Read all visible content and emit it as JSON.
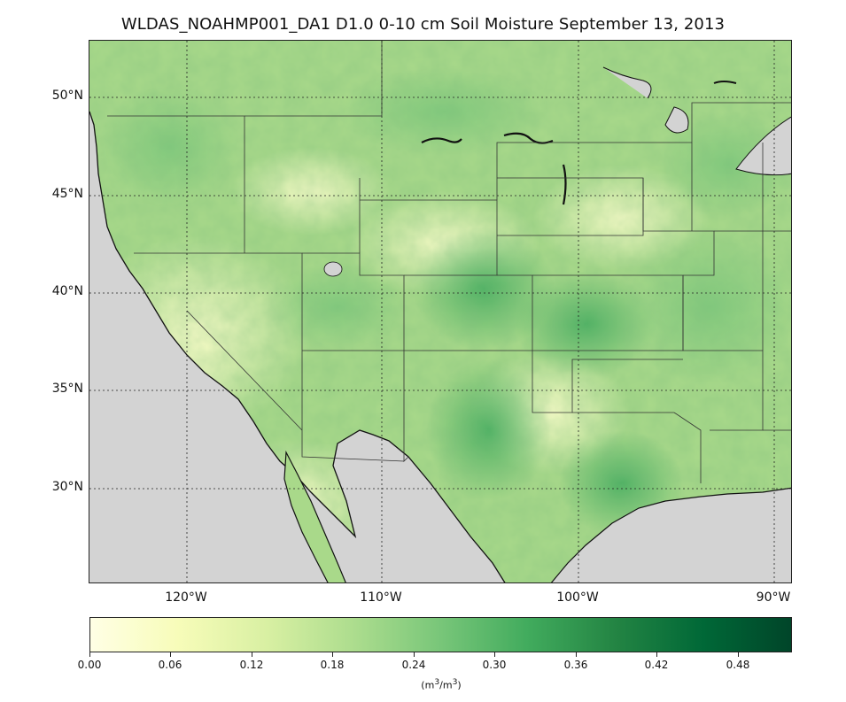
{
  "title": "WLDAS_NOAHMP001_DA1 D1.0 0-10 cm Soil Moisture September 13, 2013",
  "lat_labels": [
    "50°N",
    "45°N",
    "40°N",
    "35°N",
    "30°N"
  ],
  "lon_labels": [
    "120°W",
    "110°W",
    "100°W",
    "90°W"
  ],
  "colorbar": {
    "ticks": [
      "0.00",
      "0.06",
      "0.12",
      "0.18",
      "0.24",
      "0.30",
      "0.36",
      "0.42",
      "0.48"
    ],
    "units_main": "(m",
    "units_sup1": "3",
    "units_mid": "/m",
    "units_sup2": "3",
    "units_end": ")",
    "colors": [
      "#ffffe5",
      "#f7fcb9",
      "#d9f0a3",
      "#addd8e",
      "#78c679",
      "#41ab5d",
      "#238443",
      "#006837",
      "#004529"
    ],
    "range": [
      0.0,
      0.52
    ]
  },
  "map": {
    "ocean_color": "#d3d3d3",
    "lake_color": "#d3d3d3",
    "extent": {
      "lon": [
        -125,
        -89
      ],
      "lat": [
        25,
        53
      ]
    },
    "graticule_lat": [
      30,
      35,
      40,
      45,
      50
    ],
    "graticule_lon": [
      -120,
      -110,
      -100,
      -90
    ]
  }
}
